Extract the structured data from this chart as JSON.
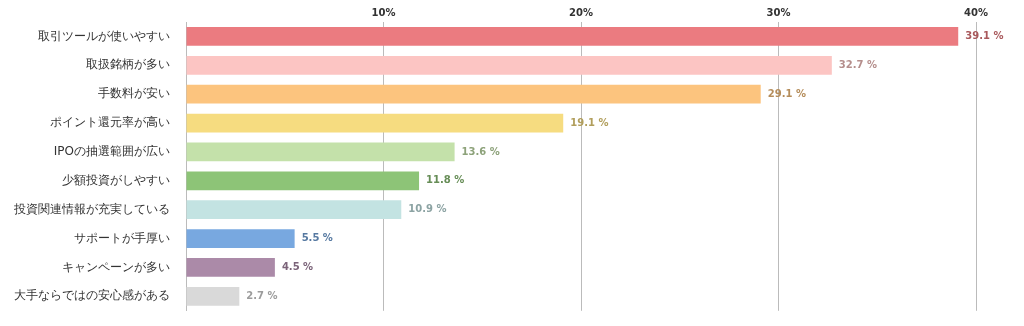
{
  "chart_data": {
    "type": "bar",
    "orientation": "horizontal",
    "categories": [
      "取引ツールが使いやすい",
      "取扱銘柄が多い",
      "手数料が安い",
      "ポイント還元率が高い",
      "IPOの抽選範囲が広い",
      "少額投資がしやすい",
      "投資関連情報が充実している",
      "サポートが手厚い",
      "キャンペーンが多い",
      "大手ならではの安心感がある"
    ],
    "values": [
      39.1,
      32.7,
      29.1,
      19.1,
      13.6,
      11.8,
      10.9,
      5.5,
      4.5,
      2.7
    ],
    "colors": [
      "#eb7b80",
      "#fcc5c3",
      "#fcc47e",
      "#f6dc80",
      "#c4e1aa",
      "#8dc477",
      "#c3e3e2",
      "#78a8e0",
      "#ab8aa8",
      "#d9d9d9"
    ],
    "value_labels": [
      "39.1 %",
      "32.7 %",
      "29.1 %",
      "19.1 %",
      "13.6 %",
      "11.8 %",
      "10.9 %",
      "5.5 %",
      "4.5 %",
      "2.7 %"
    ],
    "xlim": [
      0,
      40
    ],
    "xticks": [
      {
        "value": 0,
        "label": null
      },
      {
        "value": 10,
        "label": "10%"
      },
      {
        "value": 20,
        "label": "20%"
      },
      {
        "value": 30,
        "label": "30%"
      },
      {
        "value": 40,
        "label": "40%"
      }
    ],
    "grid": "x",
    "legend": false
  }
}
